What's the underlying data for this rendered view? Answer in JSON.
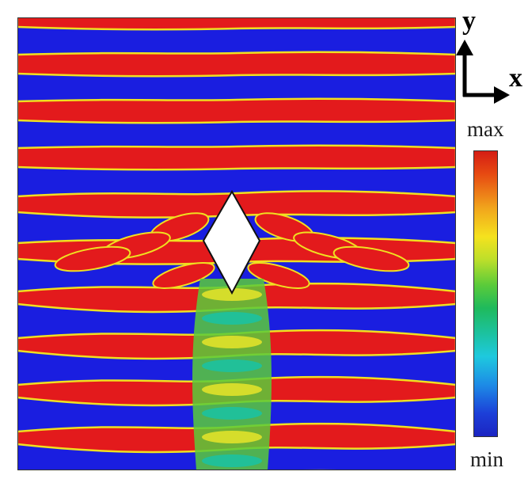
{
  "axes": {
    "y": "y",
    "x": "x"
  },
  "colorbar": {
    "max_label": "max",
    "min_label": "min",
    "colors": [
      "#d51d14",
      "#f1a51c",
      "#f5e21e",
      "#5acb3a",
      "#1cc2a0",
      "#1ec9de",
      "#1d8be6",
      "#1b24c2"
    ]
  },
  "field": {
    "description_colors": {
      "crest": "#e31a1c",
      "trough": "#1a1ee0",
      "transition": "#f0e020",
      "obstacle": "#ffffff"
    },
    "obstacle_shape": "rhombus"
  }
}
